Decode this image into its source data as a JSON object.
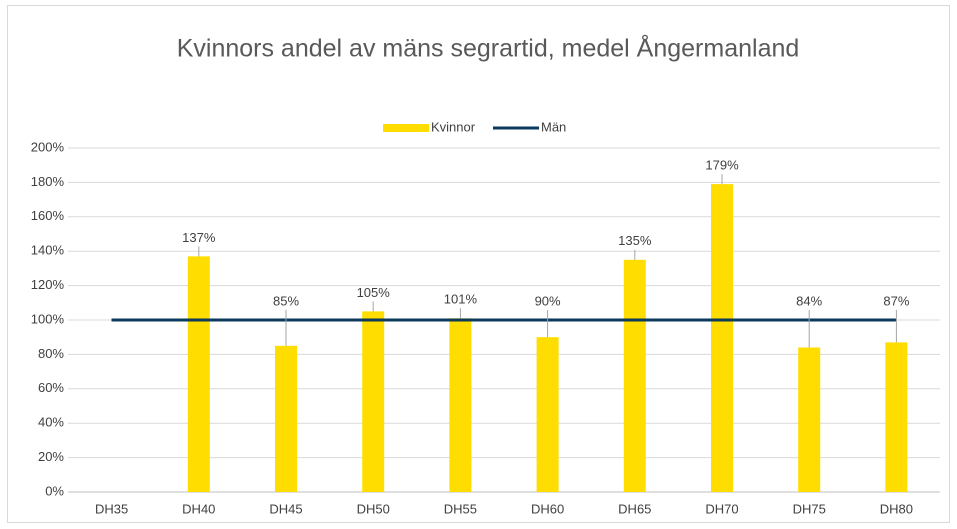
{
  "chart_data": {
    "type": "bar",
    "title": "Kvinnors andel av mäns segrartid, medel Ångermanland",
    "categories": [
      "DH35",
      "DH40",
      "DH45",
      "DH50",
      "DH55",
      "DH60",
      "DH65",
      "DH70",
      "DH75",
      "DH80"
    ],
    "series": [
      {
        "name": "Kvinnor",
        "type": "bar",
        "color": "#ffdd00",
        "values": [
          null,
          137,
          85,
          105,
          101,
          90,
          135,
          179,
          84,
          87
        ],
        "value_labels": [
          null,
          "137%",
          "85%",
          "105%",
          "101%",
          "90%",
          "135%",
          "179%",
          "84%",
          "87%"
        ]
      },
      {
        "name": "Män",
        "type": "line",
        "color": "#0b3a5c",
        "values": [
          100,
          100,
          100,
          100,
          100,
          100,
          100,
          100,
          100,
          100
        ]
      }
    ],
    "ylim": [
      0,
      200
    ],
    "yticks": [
      {
        "value": 0,
        "label": "0%"
      },
      {
        "value": 20,
        "label": "20%"
      },
      {
        "value": 40,
        "label": "40%"
      },
      {
        "value": 60,
        "label": "60%"
      },
      {
        "value": 80,
        "label": "80%"
      },
      {
        "value": 100,
        "label": "100%"
      },
      {
        "value": 120,
        "label": "120%"
      },
      {
        "value": 140,
        "label": "140%"
      },
      {
        "value": 160,
        "label": "160%"
      },
      {
        "value": 180,
        "label": "180%"
      },
      {
        "value": 200,
        "label": "200%"
      }
    ],
    "grid": true,
    "legend": "top"
  }
}
